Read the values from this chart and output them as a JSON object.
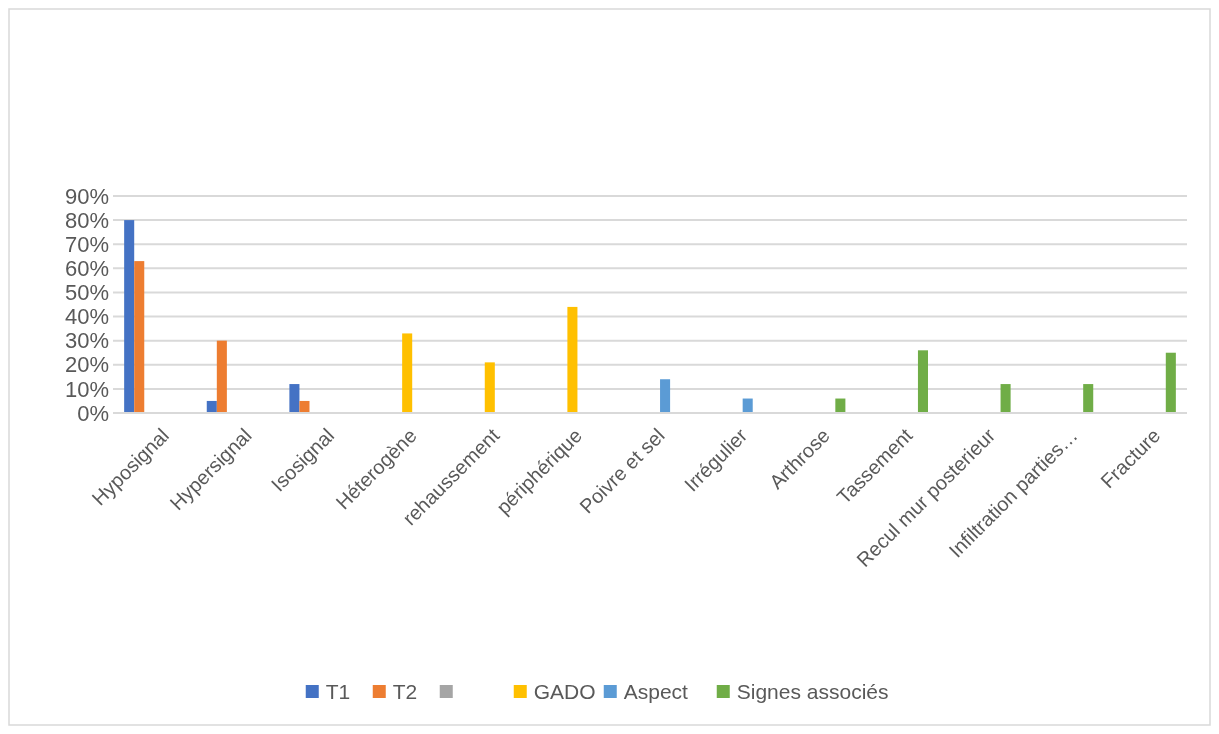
{
  "chart_data": {
    "type": "bar",
    "categories": [
      "Hyposignal",
      "Hypersignal",
      "Isosignal",
      "Héterogène",
      "rehaussement",
      "périphérique",
      "Poivre et sel",
      "Irrégulier",
      "Arthrose",
      "Tassement",
      "Recul mur posterieur",
      "Infiltration parties…",
      "Fracture"
    ],
    "series": [
      {
        "name": "T1",
        "color": "#4472c4",
        "values": [
          80,
          5,
          12,
          null,
          null,
          null,
          null,
          null,
          null,
          null,
          null,
          null,
          null
        ]
      },
      {
        "name": "T2",
        "color": "#ed7d31",
        "values": [
          63,
          30,
          5,
          null,
          null,
          null,
          null,
          null,
          null,
          null,
          null,
          null,
          null
        ]
      },
      {
        "color": "#a5a5a5",
        "values": [
          null,
          null,
          null,
          null,
          null,
          null,
          null,
          null,
          null,
          null,
          null,
          null,
          null
        ]
      },
      {
        "name": "GADO",
        "color": "#ffc000",
        "values": [
          null,
          null,
          null,
          33,
          21,
          44,
          null,
          null,
          null,
          null,
          null,
          null,
          null
        ]
      },
      {
        "name": "Aspect",
        "color": "#5b9bd5",
        "values": [
          null,
          null,
          null,
          null,
          null,
          null,
          14,
          6,
          null,
          null,
          null,
          null,
          null
        ]
      },
      {
        "name": "Signes associés",
        "color": "#70ad47",
        "values": [
          null,
          null,
          null,
          null,
          null,
          null,
          null,
          null,
          6,
          26,
          12,
          12,
          25
        ]
      }
    ],
    "ylim": [
      0,
      90
    ],
    "yticks": [
      {
        "value": 0,
        "label": "0%"
      },
      {
        "value": 10,
        "label": "10%"
      },
      {
        "value": 20,
        "label": "20%"
      },
      {
        "value": 30,
        "label": "30%"
      },
      {
        "value": 40,
        "label": "40%"
      },
      {
        "value": 50,
        "label": "50%"
      },
      {
        "value": 60,
        "label": "60%"
      },
      {
        "value": 70,
        "label": "70%"
      },
      {
        "value": 80,
        "label": "80%"
      },
      {
        "value": 90,
        "label": "90%"
      }
    ],
    "grid": "y",
    "legend": "bottom"
  }
}
